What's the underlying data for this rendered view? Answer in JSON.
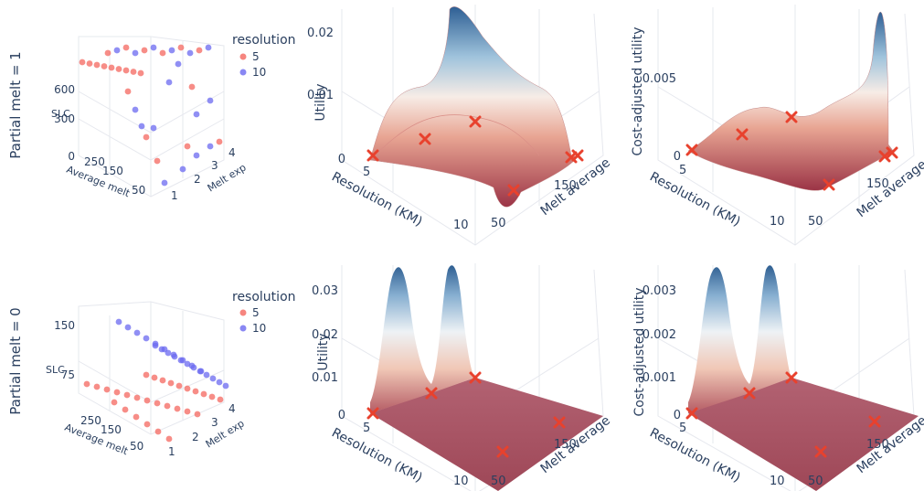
{
  "row_titles": [
    "Partial melt = 1",
    "Partial melt = 0"
  ],
  "legend": {
    "title": "resolution",
    "items": [
      {
        "label": "5",
        "color": "#f4675f"
      },
      {
        "label": "10",
        "color": "#6b69f0"
      }
    ]
  },
  "colors": {
    "marker_x": "#e8412d",
    "surface_low": "#a23a4c",
    "surface_mid": "#f2c6b4",
    "surface_high": "#2e5f94"
  },
  "labels": {
    "slc": "SLC",
    "average_melt": "Average melt",
    "melt_exp": "Melt exp",
    "utility": "Utility",
    "cost_utility": "Cost-adjusted utility",
    "resolution_km": "Resolution (KM)",
    "melt_average": "Melt average"
  },
  "scatter_ticks": {
    "r1_slc": [
      "600",
      "300",
      "0"
    ],
    "r2_slc": [
      "150",
      "75"
    ],
    "avg_melt": [
      "250",
      "150",
      "50"
    ],
    "melt_exp": [
      "4",
      "3",
      "2",
      "1"
    ]
  },
  "surface_ticks": {
    "r1_utility": [
      "0.02",
      "0.01",
      "0"
    ],
    "r1_cost": [
      "0.005",
      "0"
    ],
    "r2_utility": [
      "0.03",
      "0.02",
      "0.01",
      "0"
    ],
    "r2_cost": [
      "0.003",
      "0.002",
      "0.001",
      "0"
    ],
    "resolution": [
      "5",
      "10"
    ],
    "melt_average": [
      "150",
      "50"
    ]
  },
  "chart_data": [
    {
      "type": "scatter",
      "panel": "partial-melt-1-scatter",
      "xlabel": "Average melt",
      "ylabel": "Melt exp",
      "zlabel": "SLC",
      "series": [
        {
          "name": "5"
        },
        {
          "name": "10"
        }
      ]
    },
    {
      "type": "area",
      "panel": "partial-melt-1-utility",
      "xlabel": "Resolution (KM)",
      "ylabel": "Melt average",
      "zlabel": "Utility",
      "zlim": [
        0,
        0.024
      ]
    },
    {
      "type": "area",
      "panel": "partial-melt-1-cost-utility",
      "xlabel": "Resolution (KM)",
      "ylabel": "Melt average",
      "zlabel": "Cost-adjusted utility",
      "zlim": [
        0,
        0.008
      ]
    },
    {
      "type": "scatter",
      "panel": "partial-melt-0-scatter",
      "xlabel": "Average melt",
      "ylabel": "Melt exp",
      "zlabel": "SLC",
      "series": [
        {
          "name": "5"
        },
        {
          "name": "10"
        }
      ]
    },
    {
      "type": "area",
      "panel": "partial-melt-0-utility",
      "xlabel": "Resolution (KM)",
      "ylabel": "Melt average",
      "zlabel": "Utility",
      "zlim": [
        0,
        0.036
      ]
    },
    {
      "type": "area",
      "panel": "partial-melt-0-cost-utility",
      "xlabel": "Resolution (KM)",
      "ylabel": "Melt average",
      "zlabel": "Cost-adjusted utility",
      "zlim": [
        0,
        0.0036
      ]
    }
  ]
}
